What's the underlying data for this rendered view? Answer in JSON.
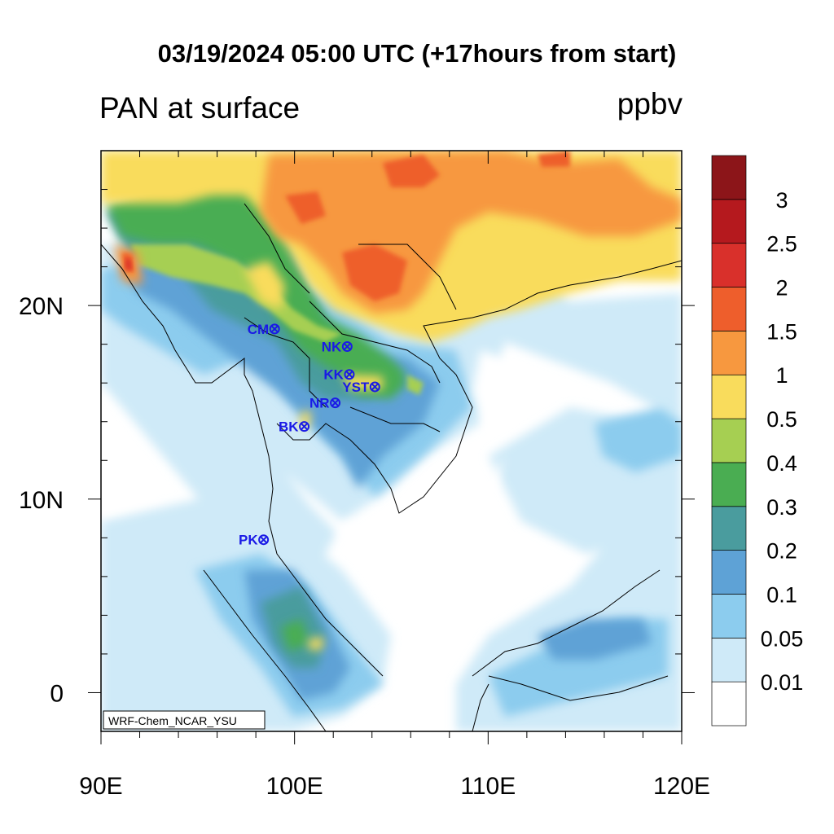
{
  "title": "03/19/2024 05:00 UTC (+17hours from start)",
  "left_subtitle": "PAN at surface",
  "units": "ppbv",
  "watermark": "WRF-Chem_NCAR_YSU",
  "map": {
    "lon_range": [
      90,
      120
    ],
    "lat_range": [
      -2,
      28
    ],
    "x_tick_labels": [
      "90E",
      "100E",
      "110E",
      "120E"
    ],
    "x_tick_values": [
      90,
      100,
      110,
      120
    ],
    "y_tick_labels": [
      "0",
      "10N",
      "20N"
    ],
    "y_tick_values": [
      0,
      10,
      20
    ],
    "coastlines": true,
    "country_borders": true
  },
  "colorbar": {
    "labels": [
      "0.01",
      "0.05",
      "0.1",
      "0.2",
      "0.3",
      "0.4",
      "0.5",
      "1",
      "1.5",
      "2",
      "2.5",
      "3"
    ],
    "colors": [
      "#ffffff",
      "#cfeaf8",
      "#8cccee",
      "#5ea2d6",
      "#4a9c9e",
      "#4aad52",
      "#a6cf52",
      "#f9dc5c",
      "#f7983f",
      "#ee5e2c",
      "#d9302b",
      "#b5191e",
      "#8c1519"
    ]
  },
  "stations": [
    {
      "label": "CM",
      "lon": 98.97,
      "lat": 18.79
    },
    {
      "label": "NK",
      "lon": 102.72,
      "lat": 17.88
    },
    {
      "label": "KK",
      "lon": 102.83,
      "lat": 16.44
    },
    {
      "label": "YST",
      "lon": 104.15,
      "lat": 15.8
    },
    {
      "label": "NR",
      "lon": 102.1,
      "lat": 14.97
    },
    {
      "label": "BK",
      "lon": 100.5,
      "lat": 13.75
    },
    {
      "label": "PK",
      "lon": 98.4,
      "lat": 7.9
    }
  ],
  "station_color": "#1a1ae6"
}
